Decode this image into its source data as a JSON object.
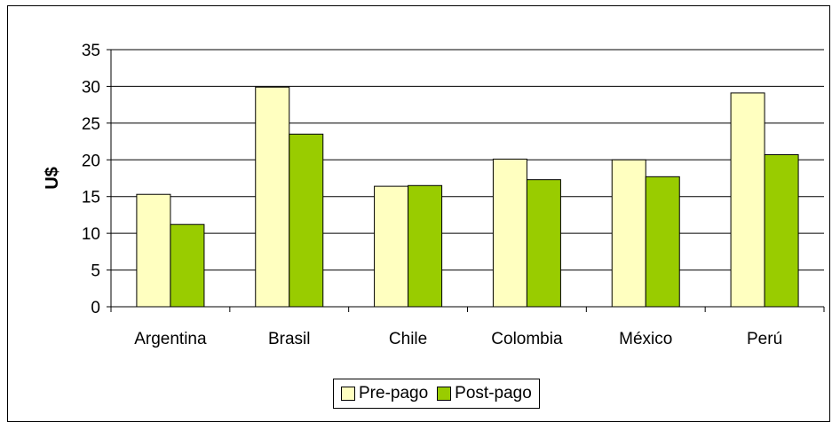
{
  "chart_data": {
    "type": "bar",
    "title": "",
    "xlabel": "",
    "ylabel": "U$",
    "ylim": [
      0,
      35
    ],
    "yticks": [
      0,
      5,
      10,
      15,
      20,
      25,
      30,
      35
    ],
    "grid": true,
    "legend_position": "bottom",
    "categories": [
      "Argentina",
      "Brasil",
      "Chile",
      "Colombia",
      "México",
      "Perú"
    ],
    "series": [
      {
        "name": "Pre-pago",
        "color": "#ffffc0",
        "values": [
          15.3,
          29.9,
          16.4,
          20.1,
          20.0,
          29.1
        ]
      },
      {
        "name": "Post-pago",
        "color": "#99cc00",
        "values": [
          11.2,
          23.5,
          16.5,
          17.3,
          17.7,
          20.7
        ]
      }
    ]
  }
}
